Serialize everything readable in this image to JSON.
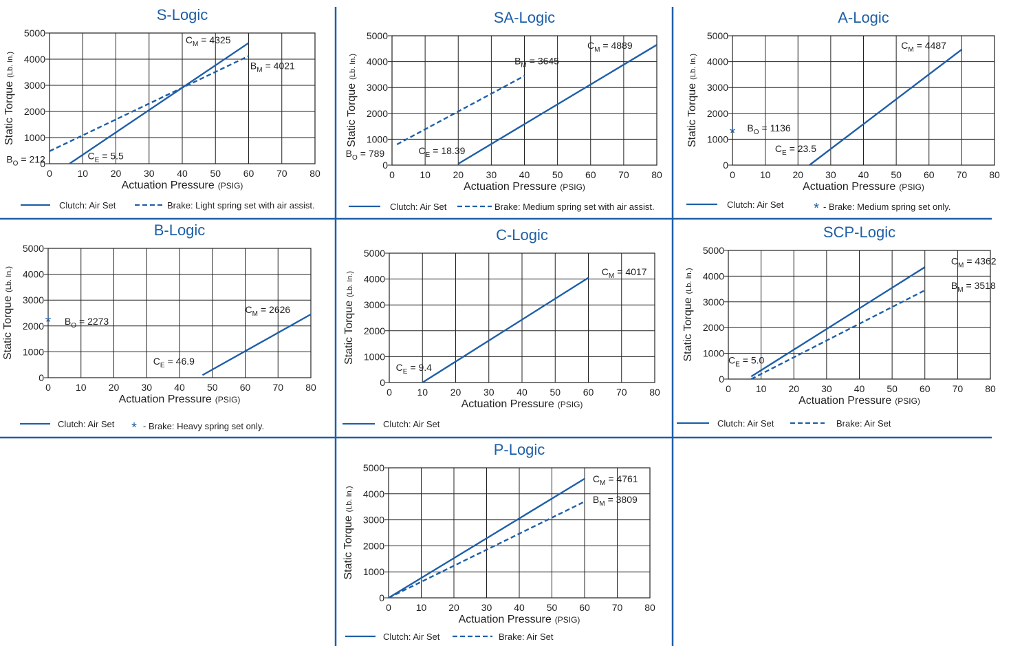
{
  "page": {
    "accent_color": "#1e5fa8",
    "grid_color": "#222222",
    "text_color": "#222222"
  },
  "chart_data": [
    {
      "type": "line",
      "title": "S-Logic",
      "xlabel": "Actuation Pressure",
      "xunit": "(PSIG)",
      "ylabel": "Static Torque",
      "yunit": "(Lb. In.)",
      "xlim": [
        0,
        80
      ],
      "ylim": [
        0,
        5000
      ],
      "x_ticks": [
        0,
        10,
        20,
        30,
        40,
        50,
        60,
        70,
        80
      ],
      "y_ticks": [
        0,
        1000,
        2000,
        3000,
        4000,
        5000
      ],
      "grid": true,
      "series": [
        {
          "name": "Clutch: Air Set",
          "style": "solid",
          "points": [
            [
              6,
              0
            ],
            [
              60,
              4620
            ]
          ]
        },
        {
          "name": "Brake: Light spring set with air assist.",
          "style": "dashed",
          "points": [
            [
              0,
              480
            ],
            [
              60,
              4120
            ]
          ]
        }
      ],
      "annotations": [
        {
          "main": "C",
          "sub": "M",
          "value": "= 4325",
          "x": 41,
          "y": 4600
        },
        {
          "main": "B",
          "sub": "M",
          "value": "= 4021",
          "x": 60.5,
          "y": 3620
        },
        {
          "main": "B",
          "sub": "O",
          "value": "= 212",
          "x": -13,
          "y": 40
        },
        {
          "main": "C",
          "sub": "E",
          "value": "= 5.5",
          "x": 11.5,
          "y": 170
        }
      ],
      "markers": []
    },
    {
      "type": "line",
      "title": "SA-Logic",
      "xlabel": "Actuation Pressure",
      "xunit": "(PSIG)",
      "ylabel": "Static Torque",
      "yunit": "(Lb. In.)",
      "xlim": [
        0,
        80
      ],
      "ylim": [
        0,
        5000
      ],
      "x_ticks": [
        0,
        10,
        20,
        30,
        40,
        50,
        60,
        70,
        80
      ],
      "y_ticks": [
        0,
        1000,
        2000,
        3000,
        4000,
        5000
      ],
      "grid": true,
      "series": [
        {
          "name": "Clutch: Air Set",
          "style": "solid",
          "points": [
            [
              20,
              50
            ],
            [
              80,
              4650
            ]
          ]
        },
        {
          "name": "Brake: Medium spring set with air assist.",
          "style": "dashed",
          "points": [
            [
              1.5,
              800
            ],
            [
              40,
              3450
            ]
          ]
        }
      ],
      "annotations": [
        {
          "main": "C",
          "sub": "M",
          "value": "= 4889",
          "x": 59,
          "y": 4500
        },
        {
          "main": "B",
          "sub": "M",
          "value": "= 3645",
          "x": 37,
          "y": 3900
        },
        {
          "main": "B",
          "sub": "O",
          "value": "= 789",
          "x": -14,
          "y": 320
        },
        {
          "main": "C",
          "sub": "E",
          "value": "= 18.39",
          "x": 8,
          "y": 420
        }
      ],
      "markers": []
    },
    {
      "type": "line",
      "title": "A-Logic",
      "xlabel": "Actuation Pressure",
      "xunit": "(PSIG)",
      "ylabel": "Static Torque",
      "yunit": "(Lb. In.)",
      "xlim": [
        0,
        80
      ],
      "ylim": [
        0,
        5000
      ],
      "x_ticks": [
        0,
        10,
        20,
        30,
        40,
        50,
        60,
        70,
        80
      ],
      "y_ticks": [
        0,
        1000,
        2000,
        3000,
        4000,
        5000
      ],
      "grid": true,
      "series": [
        {
          "name": "Clutch: Air Set",
          "style": "solid",
          "points": [
            [
              23.5,
              0
            ],
            [
              70,
              4470
            ]
          ]
        },
        {
          "name": "Brake: Medium spring set only.",
          "style": "marker",
          "points": [
            [
              0,
              1280
            ]
          ]
        }
      ],
      "annotations": [
        {
          "main": "C",
          "sub": "M",
          "value": "= 4487",
          "x": 51.5,
          "y": 4500
        },
        {
          "main": "B",
          "sub": "O",
          "value": "= 1136",
          "x": 4.5,
          "y": 1300
        },
        {
          "main": "C",
          "sub": "E",
          "value": "= 23.5",
          "x": 13,
          "y": 500
        }
      ],
      "markers": [
        {
          "x": 0,
          "y": 1280
        }
      ]
    },
    {
      "type": "line",
      "title": "B-Logic",
      "xlabel": "Actuation Pressure",
      "xunit": "(PSIG)",
      "ylabel": "Static Torque",
      "yunit": "(Lb. In.)",
      "xlim": [
        0,
        80
      ],
      "ylim": [
        0,
        5000
      ],
      "x_ticks": [
        0,
        10,
        20,
        30,
        40,
        50,
        60,
        70,
        80
      ],
      "y_ticks": [
        0,
        1000,
        2000,
        3000,
        4000,
        5000
      ],
      "grid": true,
      "series": [
        {
          "name": "Clutch: Air Set",
          "style": "solid",
          "points": [
            [
              47,
              100
            ],
            [
              80,
              2450
            ]
          ]
        },
        {
          "name": "Brake: Heavy spring set only.",
          "style": "marker",
          "points": [
            [
              0,
              2200
            ]
          ]
        }
      ],
      "annotations": [
        {
          "main": "C",
          "sub": "M",
          "value": "= 2626",
          "x": 60,
          "y": 2500
        },
        {
          "main": "B",
          "sub": "O",
          "value": "= 2273",
          "x": 5,
          "y": 2050
        },
        {
          "main": "C",
          "sub": "E",
          "value": "= 46.9",
          "x": 32,
          "y": 500
        }
      ],
      "markers": [
        {
          "x": 0,
          "y": 2200
        }
      ]
    },
    {
      "type": "line",
      "title": "C-Logic",
      "xlabel": "Actuation Pressure",
      "xunit": "(PSIG)",
      "ylabel": "Static Torque",
      "yunit": "(Lb. In.)",
      "xlim": [
        0,
        80
      ],
      "ylim": [
        0,
        5000
      ],
      "x_ticks": [
        0,
        10,
        20,
        30,
        40,
        50,
        60,
        70,
        80
      ],
      "y_ticks": [
        0,
        1000,
        2000,
        3000,
        4000,
        5000
      ],
      "grid": true,
      "series": [
        {
          "name": "Clutch: Air Set",
          "style": "solid",
          "points": [
            [
              10,
              0
            ],
            [
              60,
              4050
            ]
          ]
        }
      ],
      "annotations": [
        {
          "main": "C",
          "sub": "M",
          "value": "= 4017",
          "x": 64,
          "y": 4150
        },
        {
          "main": "C",
          "sub": "E",
          "value": "= 9.4",
          "x": 2,
          "y": 450
        }
      ],
      "markers": []
    },
    {
      "type": "line",
      "title": "SCP-Logic",
      "xlabel": "Actuation Pressure",
      "xunit": "(PSIG)",
      "ylabel": "Static Torque",
      "yunit": "(Lb. In.)",
      "xlim": [
        0,
        80
      ],
      "ylim": [
        0,
        5000
      ],
      "x_ticks": [
        0,
        10,
        20,
        30,
        40,
        50,
        60,
        70,
        80
      ],
      "y_ticks": [
        0,
        1000,
        2000,
        3000,
        4000,
        5000
      ],
      "grid": true,
      "series": [
        {
          "name": "Clutch: Air Set",
          "style": "solid",
          "points": [
            [
              7,
              100
            ],
            [
              60,
              4350
            ]
          ]
        },
        {
          "name": "Brake: Air Set",
          "style": "dashed",
          "points": [
            [
              7,
              0
            ],
            [
              60,
              3450
            ]
          ]
        }
      ],
      "annotations": [
        {
          "main": "C",
          "sub": "M",
          "value": "= 4362",
          "x": 68,
          "y": 4450
        },
        {
          "main": "B",
          "sub": "M",
          "value": "= 3518",
          "x": 68,
          "y": 3500
        },
        {
          "main": "C",
          "sub": "E",
          "value": "= 5.0",
          "x": 0,
          "y": 600
        }
      ],
      "markers": []
    },
    {
      "type": "line",
      "title": "P-Logic",
      "xlabel": "Actuation Pressure",
      "xunit": "(PSIG)",
      "ylabel": "Static Torque",
      "yunit": "(Lb. In.)",
      "xlim": [
        0,
        80
      ],
      "ylim": [
        0,
        5000
      ],
      "x_ticks": [
        0,
        10,
        20,
        30,
        40,
        50,
        60,
        70,
        80
      ],
      "y_ticks": [
        0,
        1000,
        2000,
        3000,
        4000,
        5000
      ],
      "grid": true,
      "series": [
        {
          "name": "Clutch: Air Set",
          "style": "solid",
          "points": [
            [
              0,
              0
            ],
            [
              60,
              4580
            ]
          ]
        },
        {
          "name": "Brake: Air Set",
          "style": "dashed",
          "points": [
            [
              0,
              0
            ],
            [
              60,
              3700
            ]
          ]
        }
      ],
      "annotations": [
        {
          "main": "C",
          "sub": "M",
          "value": "= 4761",
          "x": 62.5,
          "y": 4450
        },
        {
          "main": "B",
          "sub": "M",
          "value": "= 3809",
          "x": 62.5,
          "y": 3650
        }
      ],
      "markers": []
    }
  ]
}
